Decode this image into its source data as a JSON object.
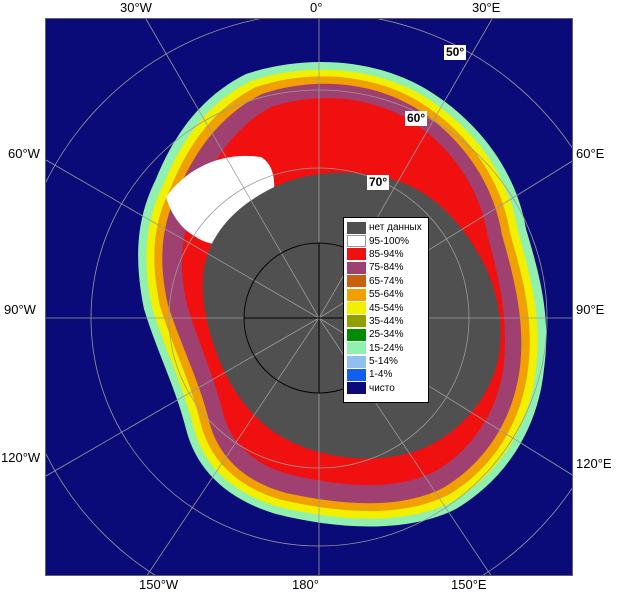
{
  "axes": {
    "top": [
      "30°W",
      "0°",
      "30°E"
    ],
    "left": [
      "60°W",
      "90°W",
      "120°W"
    ],
    "right": [
      "60°E",
      "90°E",
      "120°E"
    ],
    "bottom": [
      "150°W",
      "180°",
      "150°E"
    ]
  },
  "lat_labels": [
    "50°",
    "60°",
    "70°"
  ],
  "legend": [
    {
      "label": "нет данных",
      "color": "#505050"
    },
    {
      "label": "95-100%",
      "color": "#ffffff"
    },
    {
      "label": "85-94%",
      "color": "#f01010"
    },
    {
      "label": "75-84%",
      "color": "#a04070"
    },
    {
      "label": "65-74%",
      "color": "#c86010"
    },
    {
      "label": "55-64%",
      "color": "#f0a000"
    },
    {
      "label": "45-54%",
      "color": "#f0f000"
    },
    {
      "label": "35-44%",
      "color": "#90a000"
    },
    {
      "label": "25-34%",
      "color": "#008c00"
    },
    {
      "label": "15-24%",
      "color": "#90f0b0"
    },
    {
      "label": "5-14%",
      "color": "#90c0f0"
    },
    {
      "label": "1-4%",
      "color": "#1060f0"
    },
    {
      "label": "чисто",
      "color": "#0a0a78"
    }
  ]
}
